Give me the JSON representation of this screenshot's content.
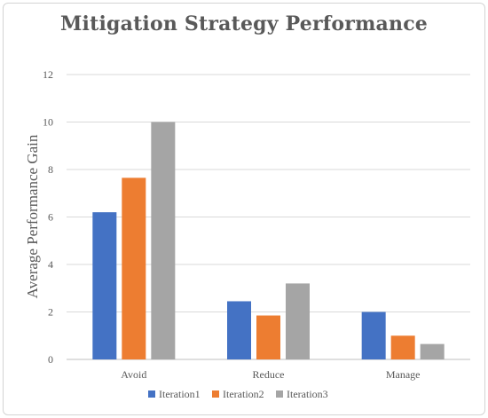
{
  "chart_data": {
    "type": "bar",
    "title": "Mitigation Strategy Performance",
    "xlabel": "",
    "ylabel": "Average Performance Gain",
    "ylim": [
      0,
      12
    ],
    "yticks": [
      0,
      2,
      4,
      6,
      8,
      10,
      12
    ],
    "grid": true,
    "legend_position": "bottom",
    "categories": [
      "Avoid",
      "Reduce",
      "Manage"
    ],
    "series": [
      {
        "name": "Iteration1",
        "color": "#4472c4",
        "values": [
          6.2,
          2.45,
          2.0
        ]
      },
      {
        "name": "Iteration2",
        "color": "#ed7d31",
        "values": [
          7.65,
          1.85,
          1.0
        ]
      },
      {
        "name": "Iteration3",
        "color": "#a5a5a5",
        "values": [
          10.0,
          3.2,
          0.65
        ]
      }
    ]
  }
}
